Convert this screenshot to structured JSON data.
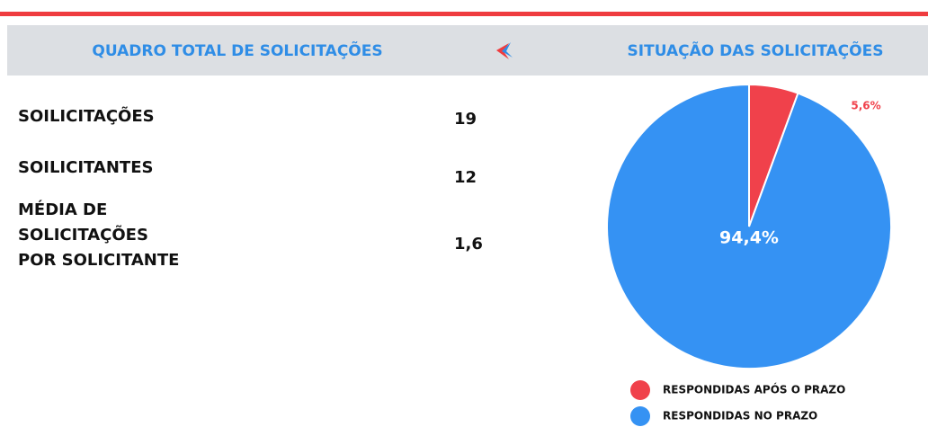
{
  "header": {
    "left_title": "QUADRO TOTAL DE SOLICITAÇÕES",
    "right_title": "SITUAÇÃO DAS SOLICITAÇÕES"
  },
  "stats": [
    {
      "lines": [
        "SOILICITAÇÕES"
      ],
      "value": "19"
    },
    {
      "lines": [
        "SOILICITANTES"
      ],
      "value": "12"
    },
    {
      "lines": [
        "MÉDIA DE",
        "SOLICITAÇÕES",
        "POR SOLICITANTE"
      ],
      "value": "1,6"
    }
  ],
  "chart_data": {
    "type": "pie",
    "categories": [
      "RESPONDIDAS APÓS O PRAZO",
      "RESPONDIDAS NO PRAZO"
    ],
    "values": [
      5.6,
      94.4
    ],
    "value_labels": [
      "5,6%",
      "94,4%"
    ],
    "colors": [
      "#f0414b",
      "#3592f3"
    ],
    "legend": "bottom"
  }
}
